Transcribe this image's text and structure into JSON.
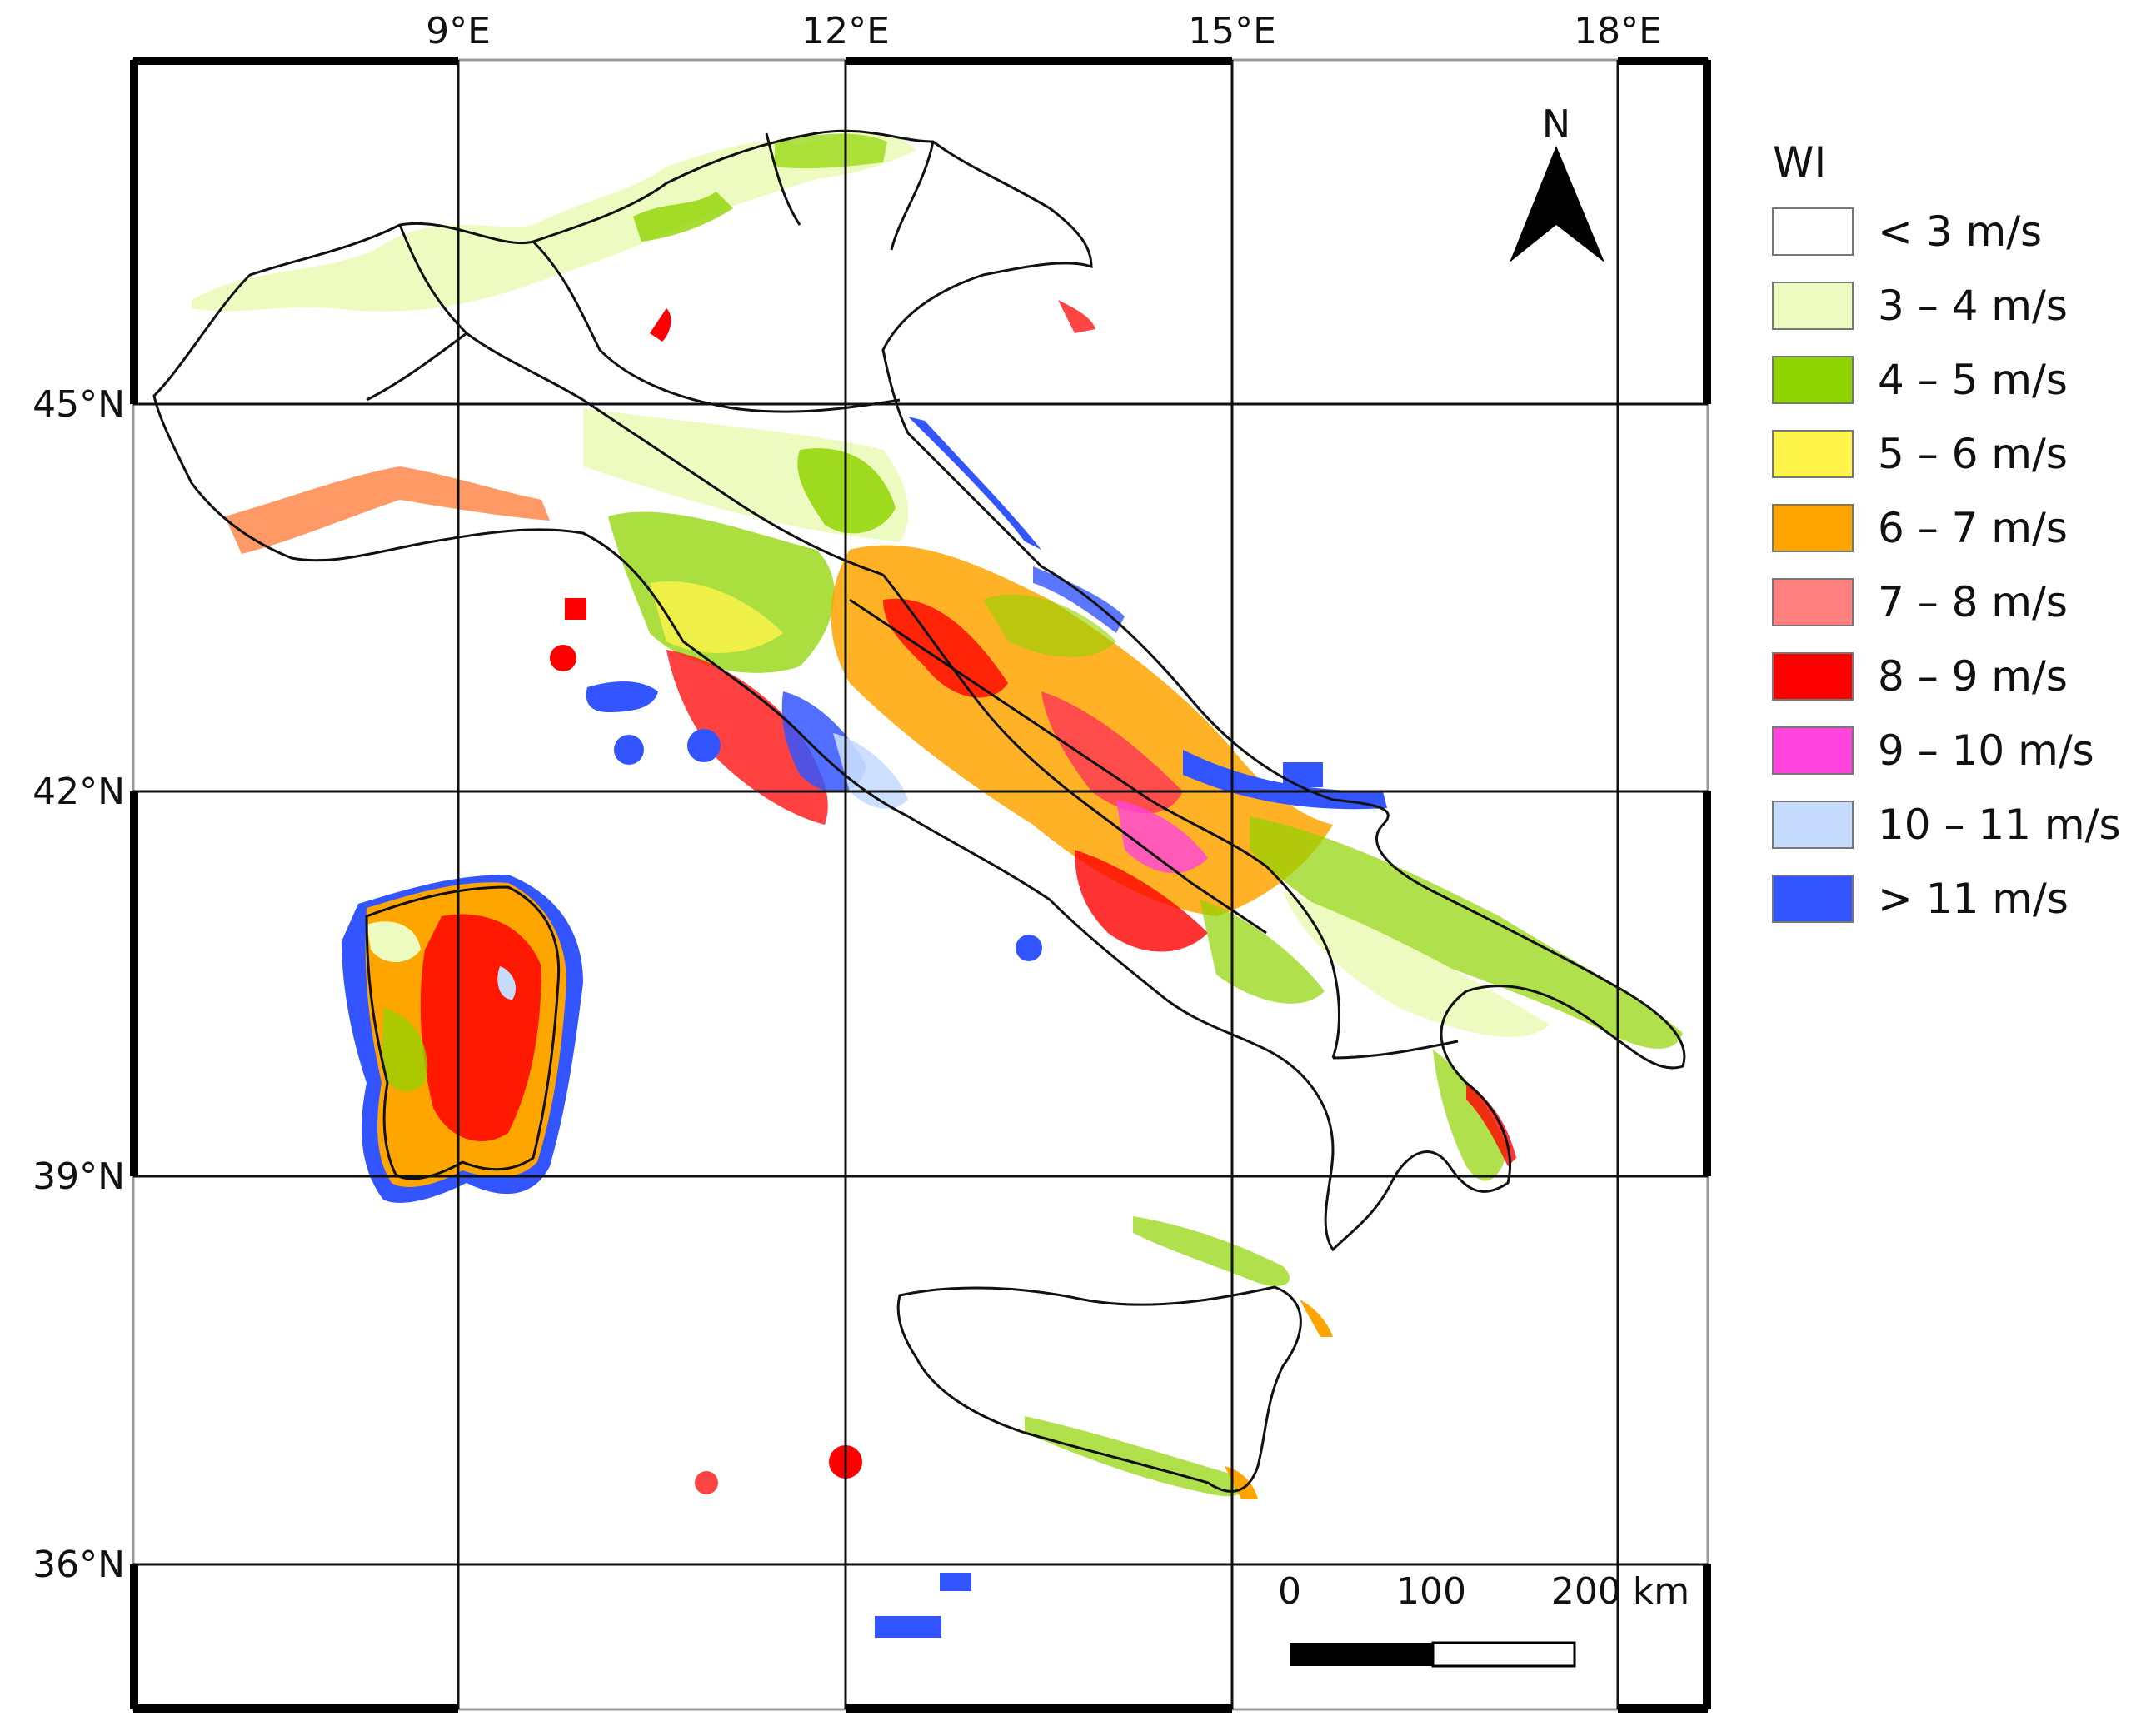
{
  "map": {
    "top_ticks": [
      "9°E",
      "12°E",
      "15°E",
      "18°E"
    ],
    "left_ticks": [
      "45°N",
      "42°N",
      "39°N",
      "36°N"
    ],
    "north_arrow": {
      "label": "N",
      "icon": "north-arrow-icon"
    },
    "scale_bar": {
      "labels": [
        "0",
        "100",
        "200 km"
      ]
    }
  },
  "legend": {
    "title": "WI",
    "items": [
      {
        "label": "< 3 m/s",
        "color": "#ffffff"
      },
      {
        "label": "3 – 4 m/s",
        "color": "#eefbc0"
      },
      {
        "label": "4 – 5 m/s",
        "color": "#8fd400"
      },
      {
        "label": "5 – 6 m/s",
        "color": "#fff44a"
      },
      {
        "label": "6 – 7 m/s",
        "color": "#ffa500"
      },
      {
        "label": "7 – 8 m/s",
        "color": "#ff7f7f"
      },
      {
        "label": "8 – 9 m/s",
        "color": "#ff0000"
      },
      {
        "label": "9 – 10 m/s",
        "color": "#ff44dd"
      },
      {
        "label": "10 – 11 m/s",
        "color": "#c6dcff"
      },
      {
        "label": "> 11 m/s",
        "color": "#3355ff"
      }
    ]
  }
}
